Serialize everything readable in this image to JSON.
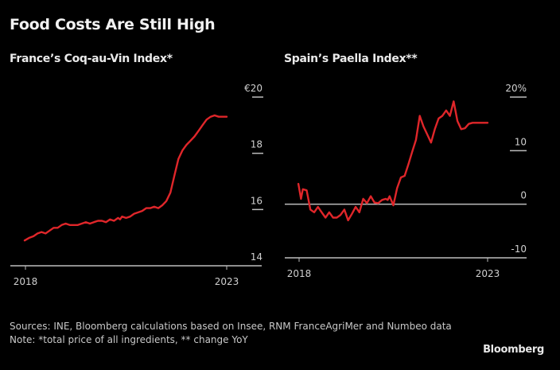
{
  "title": "Food Costs Are Still High",
  "footer": {
    "sources": "Sources: INE, Bloomberg calculations based on Insee, RNM FranceAgriMer and Numbeo data",
    "note": "Note: *total price of all ingredients, ** change YoY",
    "brand": "Bloomberg"
  },
  "colors": {
    "line": "#e0262a",
    "axis": "#bdbdbd",
    "text": "#cfcfcf",
    "background": "#000000"
  },
  "chart_data": [
    {
      "type": "line",
      "title": "France’s Coq-au-Vin Index*",
      "xlabel": "",
      "ylabel": "",
      "xlim": [
        2017.6,
        2023.6
      ],
      "ylim": [
        14,
        20
      ],
      "x_ticks": [
        2018,
        2023
      ],
      "x_tick_labels": [
        "2018",
        "2023"
      ],
      "y_ticks": [
        14,
        16,
        18,
        20
      ],
      "y_tick_labels": [
        "14",
        "16",
        "18",
        "€20"
      ],
      "y_axis_side": "right",
      "grid": false,
      "series": [
        {
          "name": "Coq-au-Vin Index (€)",
          "x": [
            2017.98,
            2018.1,
            2018.2,
            2018.3,
            2018.4,
            2018.5,
            2018.6,
            2018.7,
            2018.8,
            2018.9,
            2019.0,
            2019.1,
            2019.2,
            2019.3,
            2019.4,
            2019.5,
            2019.6,
            2019.7,
            2019.8,
            2019.9,
            2020.0,
            2020.1,
            2020.2,
            2020.3,
            2020.35,
            2020.4,
            2020.5,
            2020.6,
            2020.7,
            2020.8,
            2020.9,
            2021.0,
            2021.1,
            2021.2,
            2021.3,
            2021.4,
            2021.5,
            2021.6,
            2021.7,
            2021.8,
            2021.9,
            2022.0,
            2022.1,
            2022.2,
            2022.3,
            2022.4,
            2022.5,
            2022.6,
            2022.7,
            2022.8,
            2022.9,
            2023.0
          ],
          "values": [
            14.9,
            15.0,
            15.05,
            15.15,
            15.2,
            15.15,
            15.25,
            15.35,
            15.35,
            15.45,
            15.5,
            15.45,
            15.45,
            15.45,
            15.5,
            15.55,
            15.5,
            15.55,
            15.6,
            15.6,
            15.55,
            15.65,
            15.6,
            15.7,
            15.65,
            15.75,
            15.7,
            15.75,
            15.85,
            15.9,
            15.95,
            16.05,
            16.05,
            16.1,
            16.05,
            16.15,
            16.3,
            16.6,
            17.2,
            17.8,
            18.1,
            18.3,
            18.45,
            18.6,
            18.8,
            19.0,
            19.2,
            19.3,
            19.35,
            19.3,
            19.3,
            19.3
          ]
        }
      ]
    },
    {
      "type": "line",
      "title": "Spain’s Paella Index**",
      "xlabel": "",
      "ylabel": "",
      "xlim": [
        2017.6,
        2023.9
      ],
      "ylim": [
        -10,
        20
      ],
      "x_ticks": [
        2018,
        2023
      ],
      "x_tick_labels": [
        "2018",
        "2023"
      ],
      "y_ticks": [
        -10,
        0,
        10,
        20
      ],
      "y_tick_labels": [
        "-10",
        "0",
        "10",
        "20%"
      ],
      "y_axis_side": "right",
      "zero_line": true,
      "grid": false,
      "series": [
        {
          "name": "Paella Index (% change YoY)",
          "x": [
            2017.98,
            2018.05,
            2018.1,
            2018.2,
            2018.3,
            2018.4,
            2018.5,
            2018.6,
            2018.7,
            2018.8,
            2018.9,
            2019.0,
            2019.1,
            2019.2,
            2019.3,
            2019.4,
            2019.5,
            2019.6,
            2019.7,
            2019.8,
            2019.9,
            2020.0,
            2020.1,
            2020.2,
            2020.3,
            2020.35,
            2020.4,
            2020.5,
            2020.6,
            2020.7,
            2020.8,
            2020.9,
            2021.0,
            2021.1,
            2021.2,
            2021.3,
            2021.4,
            2021.5,
            2021.6,
            2021.7,
            2021.8,
            2021.9,
            2022.0,
            2022.1,
            2022.2,
            2022.3,
            2022.4,
            2022.5,
            2022.6,
            2022.65,
            2022.7,
            2022.8,
            2022.9,
            2023.0
          ],
          "values": [
            3.8,
            1.0,
            2.8,
            2.6,
            -1.0,
            -1.5,
            -0.5,
            -1.5,
            -2.5,
            -1.5,
            -2.5,
            -2.5,
            -2.0,
            -1.0,
            -3.0,
            -1.8,
            -0.5,
            -1.5,
            1.0,
            0.2,
            1.5,
            0.3,
            0.2,
            0.8,
            1.0,
            0.8,
            1.5,
            -0.2,
            3.0,
            5.0,
            5.3,
            7.5,
            9.8,
            12.0,
            16.5,
            14.5,
            13.0,
            11.5,
            14.0,
            16.0,
            16.5,
            17.5,
            16.5,
            19.2,
            15.5,
            14.0,
            14.2,
            15.0,
            15.2,
            15.2,
            15.2,
            15.2,
            15.2,
            15.2
          ]
        }
      ]
    }
  ]
}
